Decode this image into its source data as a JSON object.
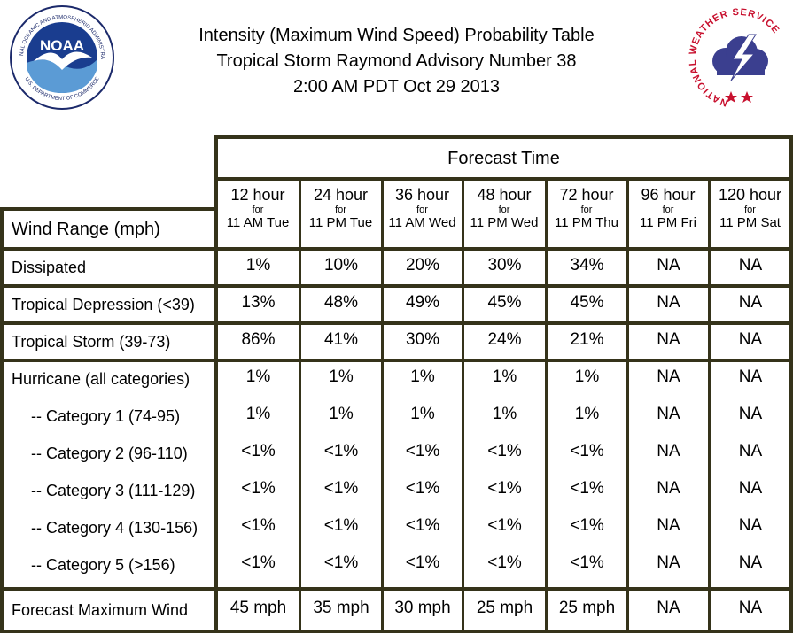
{
  "header": {
    "title_line1": "Intensity (Maximum Wind Speed) Probability Table",
    "title_line2": "Tropical Storm Raymond Advisory Number 38",
    "title_line3": "2:00 AM PDT Oct 29 2013",
    "noaa_logo_text": "NOAA",
    "noaa_ring_top": "NATIONAL OCEANIC AND ATMOSPHERIC ADMINISTRATION",
    "noaa_ring_bottom": "U.S. DEPARTMENT OF COMMERCE",
    "nws_ring_text": "NATIONAL WEATHER SERVICE"
  },
  "table": {
    "forecast_time_label": "Forecast Time",
    "wind_range_label": "Wind Range (mph)",
    "for_label": "for",
    "columns": [
      {
        "hour": "12 hour",
        "date": "11 AM Tue"
      },
      {
        "hour": "24 hour",
        "date": "11 PM Tue"
      },
      {
        "hour": "36 hour",
        "date": "11 AM Wed"
      },
      {
        "hour": "48 hour",
        "date": "11 PM Wed"
      },
      {
        "hour": "72 hour",
        "date": "11 PM Thu"
      },
      {
        "hour": "96 hour",
        "date": "11 PM Fri"
      },
      {
        "hour": "120 hour",
        "date": "11 PM Sat"
      }
    ],
    "rows": [
      {
        "label": "Dissipated",
        "values": [
          "1%",
          "10%",
          "20%",
          "30%",
          "34%",
          "NA",
          "NA"
        ]
      },
      {
        "label": "Tropical Depression (<39)",
        "values": [
          "13%",
          "48%",
          "49%",
          "45%",
          "45%",
          "NA",
          "NA"
        ]
      },
      {
        "label": "Tropical Storm (39-73)",
        "values": [
          "86%",
          "41%",
          "30%",
          "24%",
          "21%",
          "NA",
          "NA"
        ]
      },
      {
        "label": "Hurricane (all categories)",
        "values": [
          "1%",
          "1%",
          "1%",
          "1%",
          "1%",
          "NA",
          "NA"
        ]
      },
      {
        "label": "-- Category 1 (74-95)",
        "values": [
          "1%",
          "1%",
          "1%",
          "1%",
          "1%",
          "NA",
          "NA"
        ]
      },
      {
        "label": "-- Category 2 (96-110)",
        "values": [
          "<1%",
          "<1%",
          "<1%",
          "<1%",
          "<1%",
          "NA",
          "NA"
        ]
      },
      {
        "label": "-- Category 3 (111-129)",
        "values": [
          "<1%",
          "<1%",
          "<1%",
          "<1%",
          "<1%",
          "NA",
          "NA"
        ]
      },
      {
        "label": "-- Category 4 (130-156)",
        "values": [
          "<1%",
          "<1%",
          "<1%",
          "<1%",
          "<1%",
          "NA",
          "NA"
        ]
      },
      {
        "label": "-- Category 5 (>156)",
        "values": [
          "<1%",
          "<1%",
          "<1%",
          "<1%",
          "<1%",
          "NA",
          "NA"
        ]
      },
      {
        "label": "Forecast Maximum Wind",
        "values": [
          "45 mph",
          "35 mph",
          "30 mph",
          "25 mph",
          "25 mph",
          "NA",
          "NA"
        ]
      }
    ]
  }
}
